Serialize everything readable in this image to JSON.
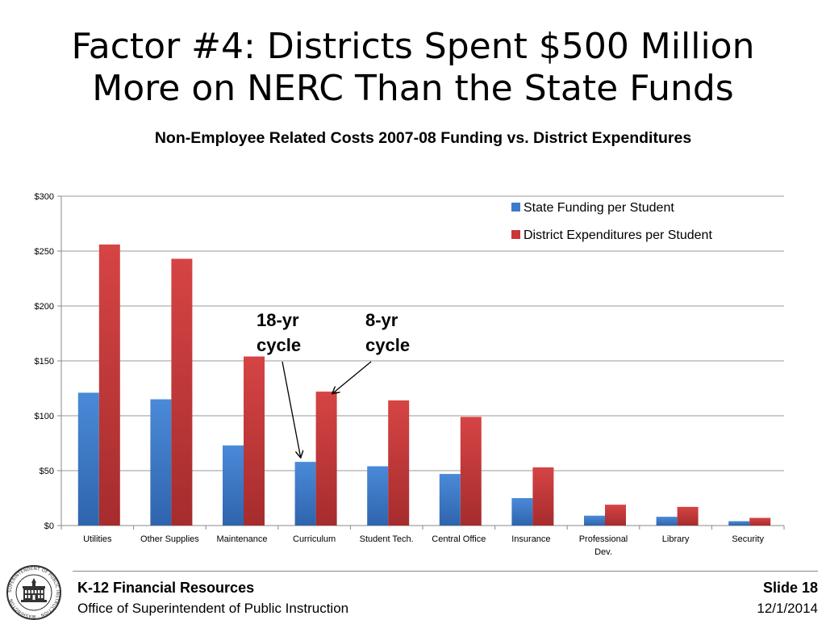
{
  "slide": {
    "title_line1": "Factor #4: Districts Spent $500 Million",
    "title_line2": "More on NERC Than the State Funds",
    "footer_org": "K-12 Financial Resources",
    "footer_office": "Office of Superintendent of Public Instruction",
    "slide_label": "Slide 18",
    "date": "12/1/2014",
    "seal_text": "SUPERINTENDENT OF PUBLIC INSTRUCTION · WASHINGTON"
  },
  "chart_data": {
    "type": "bar",
    "title": "Non-Employee Related Costs 2007-08 Funding vs. District Expenditures",
    "xlabel": "",
    "ylabel": "",
    "categories": [
      "Utilities",
      "Other Supplies",
      "Maintenance",
      "Curriculum",
      "Student Tech.",
      "Central Office",
      "Insurance",
      "Professional Dev.",
      "Library",
      "Security"
    ],
    "category_lines": [
      [
        "Utilities"
      ],
      [
        "Other Supplies"
      ],
      [
        "Maintenance"
      ],
      [
        "Curriculum"
      ],
      [
        "Student Tech."
      ],
      [
        "Central Office"
      ],
      [
        "Insurance"
      ],
      [
        "Professional",
        "Dev."
      ],
      [
        "Library"
      ],
      [
        "Security"
      ]
    ],
    "series": [
      {
        "name": "State Funding per Student",
        "color": "#3d7cc9",
        "values": [
          121,
          115,
          73,
          58,
          54,
          47,
          25,
          9,
          8,
          4
        ]
      },
      {
        "name": "District Expenditures per Student",
        "color": "#c9383a",
        "values": [
          256,
          243,
          154,
          122,
          114,
          99,
          53,
          19,
          17,
          7
        ]
      }
    ],
    "ylim": [
      0,
      300
    ],
    "yticks": [
      0,
      50,
      100,
      150,
      200,
      250,
      300
    ],
    "ytick_labels": [
      "$0",
      "$50",
      "$100",
      "$150",
      "$200",
      "$250",
      "$300"
    ],
    "grid": true,
    "legend_position": "top-right",
    "annotations": [
      {
        "lines": [
          "18-yr",
          "cycle"
        ],
        "target_category": "Curriculum",
        "target_series": 0
      },
      {
        "lines": [
          "8-yr",
          "cycle"
        ],
        "target_category": "Curriculum",
        "target_series": 1
      }
    ]
  }
}
